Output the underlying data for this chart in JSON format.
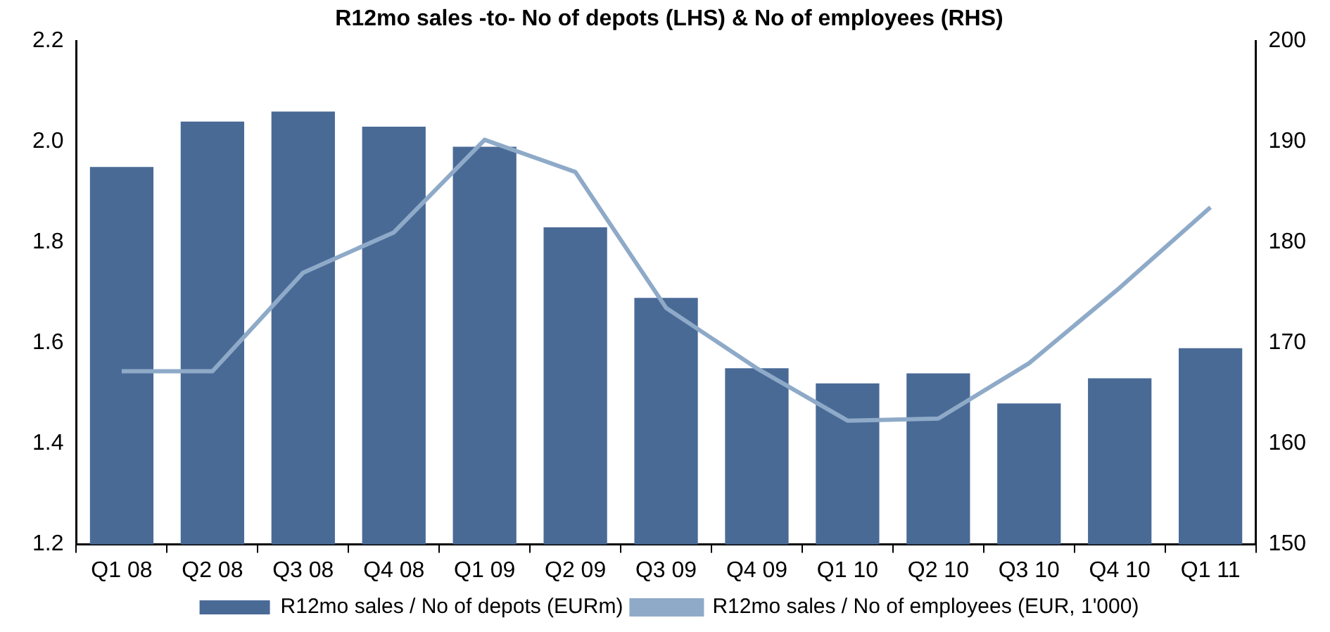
{
  "chart_data": {
    "type": "bar",
    "title": "R12mo sales -to- No of depots (LHS) & No of employees (RHS)",
    "categories": [
      "Q1 08",
      "Q2 08",
      "Q3 08",
      "Q4 08",
      "Q1 09",
      "Q2 09",
      "Q3 09",
      "Q4 09",
      "Q1 10",
      "Q2 10",
      "Q3 10",
      "Q4 10",
      "Q1 11"
    ],
    "series": [
      {
        "name": "R12mo sales / No of depots (EURm)",
        "color": "#4a6a96",
        "values": [
          1.95,
          2.04,
          2.06,
          2.03,
          1.99,
          1.83,
          1.69,
          1.55,
          1.52,
          1.54,
          1.48,
          1.53,
          1.59
        ]
      },
      {
        "name": "R12mo sales / No of employees (EUR, 1'000)",
        "type": "line",
        "axis": "y2",
        "color": "#8eaac8",
        "values": [
          167.2,
          167.2,
          177,
          181,
          190.2,
          187,
          173.5,
          167.5,
          162.3,
          162.5,
          168,
          175.5,
          183.5
        ]
      }
    ],
    "ylim": [
      1.2,
      2.2
    ],
    "yticks": [
      1.2,
      1.4,
      1.6,
      1.8,
      {
        "value": 2,
        "label": "2.0"
      },
      2.2
    ],
    "y2lim": [
      150,
      200
    ],
    "y2ticks": [
      150,
      160,
      170,
      180,
      190,
      200
    ],
    "grid": false,
    "legend": "bottom",
    "marker": "none"
  }
}
